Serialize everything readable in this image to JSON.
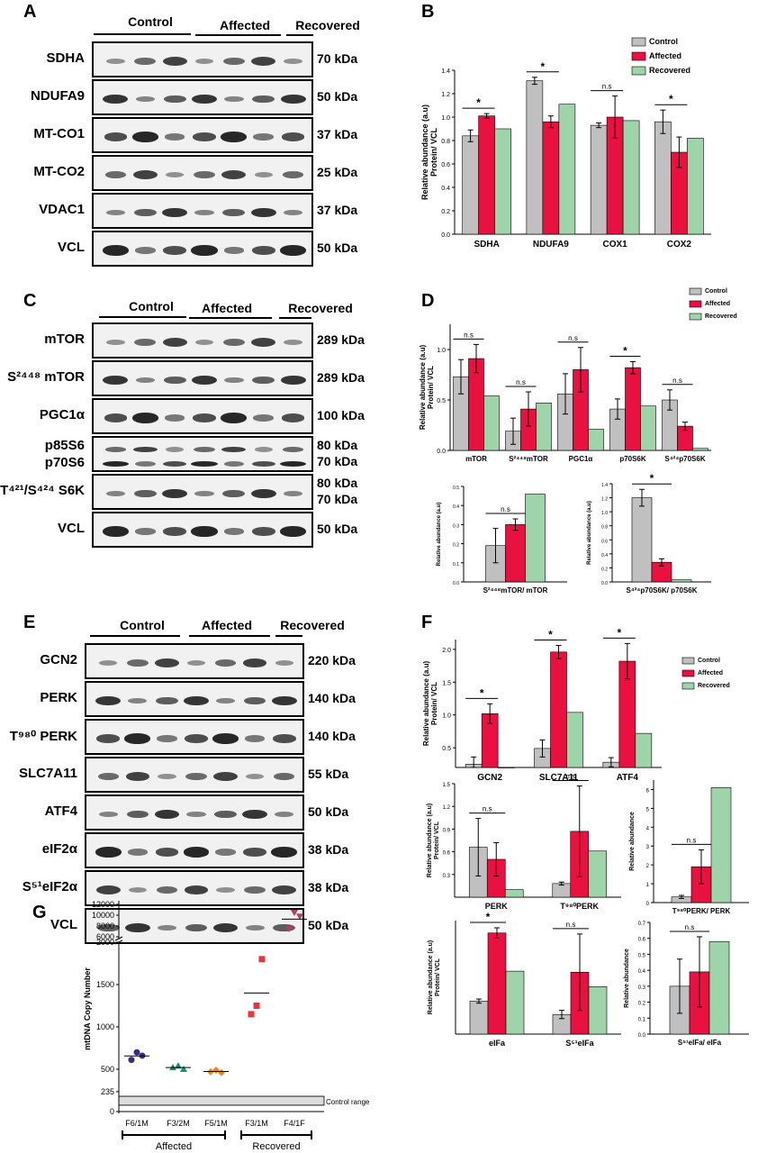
{
  "colors": {
    "control": "#c0c0c0",
    "affected": "#e8113f",
    "recovered": "#9fd3a9"
  },
  "panels": {
    "A": {
      "label": "A",
      "groups": [
        "Control",
        "Affected",
        "Recovered"
      ],
      "rows": [
        {
          "name": "SDHA",
          "kda": "70 kDa"
        },
        {
          "name": "NDUFA9",
          "kda": "50 kDa"
        },
        {
          "name": "MT-CO1",
          "kda": "37 kDa"
        },
        {
          "name": "MT-CO2",
          "kda": "25 kDa"
        },
        {
          "name": "VDAC1",
          "kda": "37 kDa"
        },
        {
          "name": "VCL",
          "kda": "50 kDa"
        }
      ]
    },
    "C": {
      "label": "C",
      "groups": [
        "Control",
        "Affected",
        "Recovered"
      ],
      "rows": [
        {
          "name": "mTOR",
          "kda": "289 kDa"
        },
        {
          "name": "S²⁴⁴⁸ mTOR",
          "kda": "289 kDa"
        },
        {
          "name": "PGC1α",
          "kda": "100 kDa"
        },
        {
          "name": "p85S6",
          "name2": "p70S6",
          "kda": "80 kDa",
          "kda2": "70 kDa"
        },
        {
          "name": "T⁴²¹/S⁴²⁴ S6K",
          "kda": "80 kDa",
          "kda2": "70 kDa"
        },
        {
          "name": "VCL",
          "kda": "50 kDa"
        }
      ]
    },
    "E": {
      "label": "E",
      "groups": [
        "Control",
        "Affected",
        "Recovered"
      ],
      "rows": [
        {
          "name": "GCN2",
          "kda": "220 kDa"
        },
        {
          "name": "PERK",
          "kda": "140 kDa"
        },
        {
          "name": "T⁹⁸⁰ PERK",
          "kda": "140 kDa"
        },
        {
          "name": "SLC7A11",
          "kda": "55 kDa"
        },
        {
          "name": "ATF4",
          "kda": "50 kDa"
        },
        {
          "name": "eIF2α",
          "kda": "38 kDa"
        },
        {
          "name": "S⁵¹eIF2α",
          "kda": "38 kDa"
        },
        {
          "name": "VCL",
          "kda": "50 kDa"
        }
      ]
    },
    "B": {
      "label": "B"
    },
    "D": {
      "label": "D"
    },
    "F": {
      "label": "F"
    },
    "G": {
      "label": "G"
    }
  },
  "legend": [
    "Control",
    "Affected",
    "Recovered"
  ],
  "chart_data": [
    {
      "id": "B",
      "type": "bar",
      "categories": [
        "SDHA",
        "NDUFA9",
        "COX1",
        "COX2"
      ],
      "ylabel": "Relative abundance (a.u)\nProtein/ VCL",
      "ylim": [
        0,
        1.4
      ],
      "yticks": [
        "0.0",
        "0.2",
        "0.4",
        "0.6",
        "0.8",
        "1.0",
        "1.2",
        "1.4"
      ],
      "series": [
        {
          "name": "Control",
          "values": [
            0.84,
            1.31,
            0.93,
            0.96
          ],
          "err": [
            0.05,
            0.03,
            0.02,
            0.1
          ]
        },
        {
          "name": "Affected",
          "values": [
            1.01,
            0.96,
            1.0,
            0.7
          ],
          "err": [
            0.02,
            0.05,
            0.18,
            0.13
          ]
        },
        {
          "name": "Recovered",
          "values": [
            0.9,
            1.11,
            0.97,
            0.82
          ]
        }
      ],
      "annotations": [
        "*",
        "*",
        "n.s",
        "*"
      ]
    },
    {
      "id": "D1",
      "type": "bar",
      "categories": [
        "mTOR",
        "S²⁴⁴⁸mTOR",
        "PGC1α",
        "p70S6K",
        "S⁴²⁴p70S6K"
      ],
      "ylabel": "Relative abundance (a.u)\nProtein/ VCL",
      "ylim": [
        0,
        1.25
      ],
      "yticks": [
        "0.0",
        "0.5",
        "1.0"
      ],
      "series": [
        {
          "name": "Control",
          "values": [
            0.73,
            0.19,
            0.56,
            0.41,
            0.5
          ],
          "err": [
            0.17,
            0.13,
            0.2,
            0.1,
            0.1
          ]
        },
        {
          "name": "Affected",
          "values": [
            0.91,
            0.41,
            0.8,
            0.82,
            0.24
          ],
          "err": [
            0.14,
            0.17,
            0.22,
            0.06,
            0.04
          ]
        },
        {
          "name": "Recovered",
          "values": [
            0.54,
            0.47,
            0.21,
            0.44,
            0.02
          ]
        }
      ],
      "annotations": [
        "n.s",
        "n.s",
        "n.s",
        "*",
        "n.s"
      ]
    },
    {
      "id": "D2",
      "type": "bar",
      "categories": [
        "S²⁴⁴⁸mTOR/ mTOR"
      ],
      "ylabel": "Relative abundance (a.u)",
      "ylim": [
        0,
        0.5
      ],
      "yticks": [
        "0.0",
        "0.1",
        "0.2",
        "0.3",
        "0.4",
        "0.5"
      ],
      "series": [
        {
          "name": "Control",
          "values": [
            0.19
          ],
          "err": [
            0.09
          ]
        },
        {
          "name": "Affected",
          "values": [
            0.3
          ],
          "err": [
            0.03
          ]
        },
        {
          "name": "Recovered",
          "values": [
            0.46
          ]
        }
      ],
      "annotations": [
        "n.s"
      ]
    },
    {
      "id": "D3",
      "type": "bar",
      "categories": [
        "S⁴²⁴p70S6K/ p70S6K"
      ],
      "ylabel": "Relative abundance (a.u)",
      "ylim": [
        0,
        1.4
      ],
      "yticks": [
        "0.0",
        "0.2",
        "0.4",
        "0.6",
        "0.8",
        "1.0",
        "1.2",
        "1.4"
      ],
      "series": [
        {
          "name": "Control",
          "values": [
            1.2
          ],
          "err": [
            0.12
          ]
        },
        {
          "name": "Affected",
          "values": [
            0.28
          ],
          "err": [
            0.05
          ]
        },
        {
          "name": "Recovered",
          "values": [
            0.03
          ]
        }
      ],
      "annotations": [
        "*"
      ]
    },
    {
      "id": "F1",
      "type": "bar",
      "categories": [
        "GCN2",
        "SLC7A11",
        "ATF4"
      ],
      "ylabel": "Relative abundance (a.u)\nProtein/ VCL",
      "ylim": [
        0.2,
        2.15
      ],
      "yticks": [
        "0.5",
        "1.0",
        "1.5",
        "2.0"
      ],
      "series": [
        {
          "name": "Control",
          "values": [
            0.25,
            0.49,
            0.28
          ],
          "err": [
            0.11,
            0.13,
            0.07
          ]
        },
        {
          "name": "Affected",
          "values": [
            1.02,
            1.96,
            1.82
          ],
          "err": [
            0.15,
            0.1,
            0.27
          ]
        },
        {
          "name": "Recovered",
          "values": [
            0.07,
            1.04,
            0.72
          ]
        }
      ],
      "annotations": [
        "*",
        "*",
        "*"
      ]
    },
    {
      "id": "F2",
      "type": "bar",
      "categories": [
        "PERK",
        "T⁹⁸⁰PERK"
      ],
      "ylabel": "Relative abundance (a.u)\nProtein/ VCL",
      "ylim": [
        0,
        1.5
      ],
      "yticks": [
        "0.3",
        "0.6",
        "0.9",
        "1.2",
        "1.5"
      ],
      "series": [
        {
          "name": "Control",
          "values": [
            0.66,
            0.18
          ],
          "err": [
            0.38,
            0.02
          ]
        },
        {
          "name": "Affected",
          "values": [
            0.5,
            0.87
          ],
          "err": [
            0.22,
            0.6
          ]
        },
        {
          "name": "Recovered",
          "values": [
            0.1,
            0.61
          ]
        }
      ],
      "annotations": [
        "n.s",
        "n.s"
      ]
    },
    {
      "id": "F3",
      "type": "bar",
      "categories": [
        "T⁹⁸⁰PERK/ PERK"
      ],
      "ylabel": "Relative abundance",
      "ylim": [
        0,
        6.5
      ],
      "yticks": [
        "0",
        "1",
        "2",
        "3",
        "4",
        "5",
        "6"
      ],
      "series": [
        {
          "name": "Control",
          "values": [
            0.3
          ],
          "err": [
            0.08
          ]
        },
        {
          "name": "Affected",
          "values": [
            1.9
          ],
          "err": [
            0.9
          ]
        },
        {
          "name": "Recovered",
          "values": [
            6.1
          ]
        }
      ],
      "annotations": [
        "n.s"
      ]
    },
    {
      "id": "F4",
      "type": "bar",
      "categories": [
        "eIFa",
        "S⁵¹eIFa"
      ],
      "ylabel": "Relative abundance (a.u)\nProtein/ VCL",
      "ylim": [
        0,
        1.1
      ],
      "yticks": [],
      "series": [
        {
          "name": "Control",
          "values": [
            0.32,
            0.19
          ],
          "err": [
            0.02,
            0.04
          ]
        },
        {
          "name": "Affected",
          "values": [
            0.98,
            0.6
          ],
          "err": [
            0.05,
            0.37
          ]
        },
        {
          "name": "Recovered",
          "values": [
            0.61,
            0.46
          ]
        }
      ],
      "annotations": [
        "*",
        "n.s"
      ]
    },
    {
      "id": "F5",
      "type": "bar",
      "categories": [
        "S⁵¹eIFa/ eIFa"
      ],
      "ylabel": "Relative abundance",
      "ylim": [
        0,
        0.7
      ],
      "yticks": [
        "0.0",
        "0.1",
        "0.2",
        "0.3",
        "0.4",
        "0.5",
        "0.6",
        "0.7"
      ],
      "series": [
        {
          "name": "Control",
          "values": [
            0.3
          ],
          "err": [
            0.17
          ]
        },
        {
          "name": "Affected",
          "values": [
            0.39
          ],
          "err": [
            0.22
          ]
        },
        {
          "name": "Recovered",
          "values": [
            0.58
          ]
        }
      ],
      "annotations": [
        "n.s"
      ]
    },
    {
      "id": "G",
      "type": "scatter",
      "ylabel": "mtDNA Copy Number",
      "categories": [
        "F6/1M",
        "F3/2M",
        "F5/1M",
        "F3/1M",
        "F4/1F"
      ],
      "groups": [
        "Affected",
        "Recovered"
      ],
      "yticks_upper": [
        "6000",
        "8000",
        "10000",
        "12000"
      ],
      "yticks_lower": [
        "0",
        "235",
        "500",
        "1000",
        "1500",
        "2000"
      ],
      "control_range_label": "Control range",
      "points": [
        [
          610,
          700,
          660
        ],
        [
          520,
          540,
          500
        ],
        [
          470,
          490,
          460
        ],
        [
          1150,
          1250,
          1800
        ],
        [
          7500,
          10500,
          9800
        ]
      ]
    }
  ]
}
